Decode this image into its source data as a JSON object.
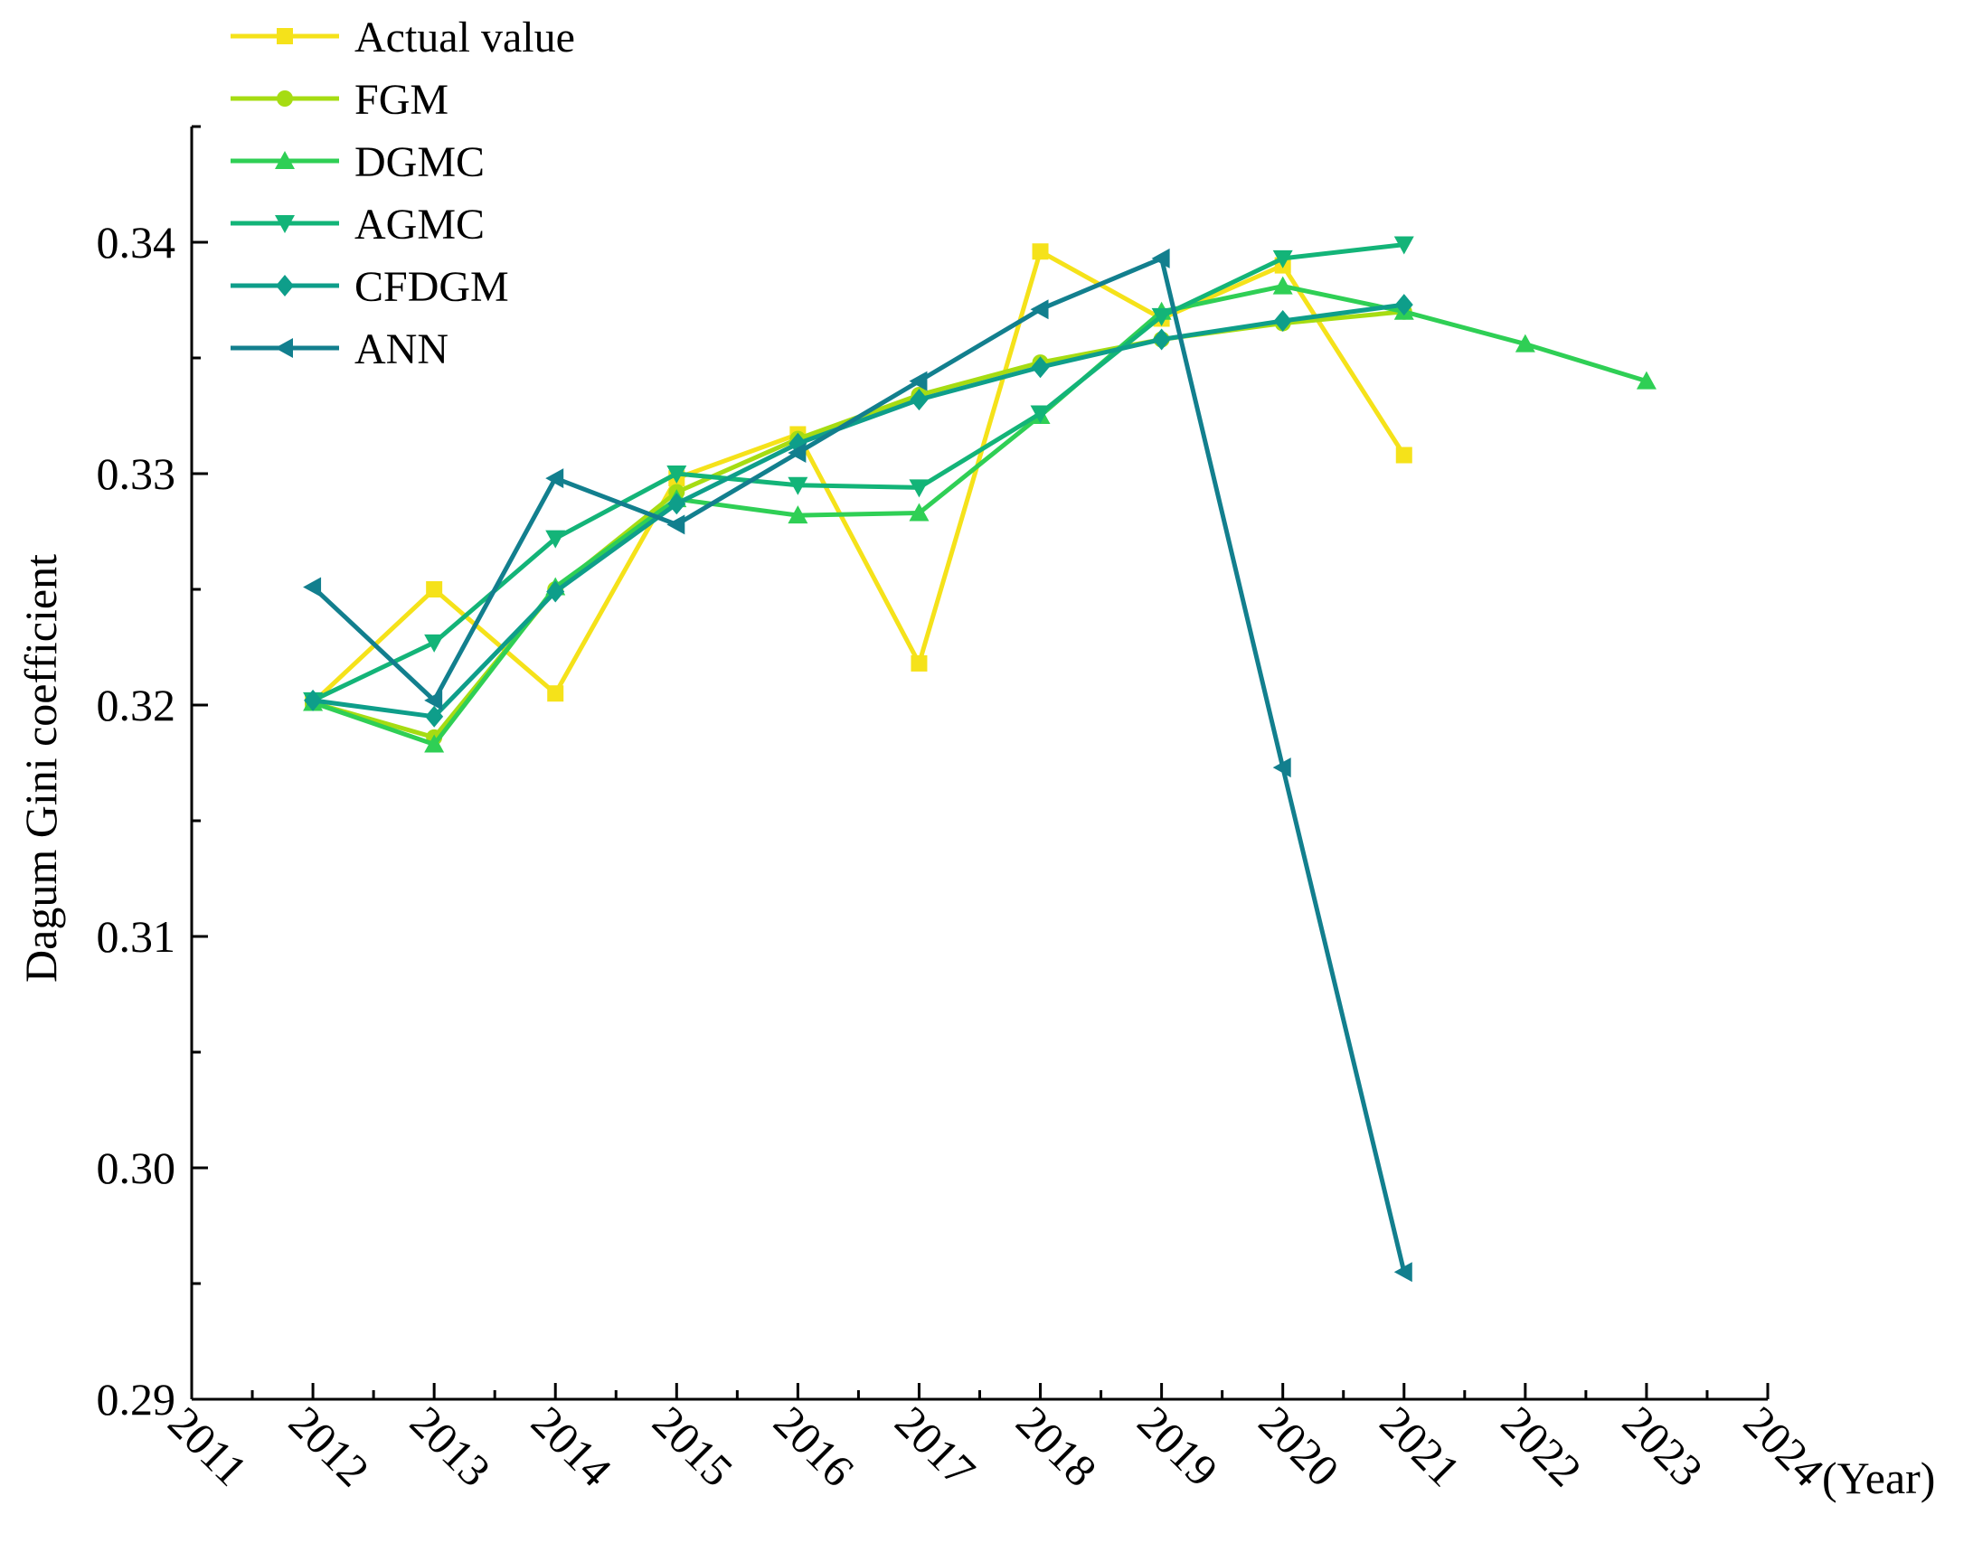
{
  "chart_data": {
    "type": "line",
    "title": "",
    "xlabel": "(Year)",
    "ylabel": "Dagum Gini coefficient",
    "xlim": [
      2011,
      2024
    ],
    "ylim": [
      0.29,
      0.345
    ],
    "x_ticks": [
      "2011",
      "2012",
      "2013",
      "2014",
      "2015",
      "2016",
      "2017",
      "2018",
      "2019",
      "2020",
      "2021",
      "2022",
      "2023",
      "2024"
    ],
    "y_ticks": [
      "0.29",
      "0.30",
      "0.31",
      "0.32",
      "0.33",
      "0.34"
    ],
    "grid": false,
    "legend_position": "top-left",
    "series": [
      {
        "name": "Actual value",
        "color": "#f5e21a",
        "marker": "square",
        "x": [
          2012,
          2013,
          2014,
          2015,
          2016,
          2017,
          2018,
          2019,
          2020,
          2021
        ],
        "values": [
          0.3201,
          0.325,
          0.3205,
          0.3298,
          0.3317,
          0.3218,
          0.3396,
          0.3367,
          0.339,
          0.3308
        ]
      },
      {
        "name": "FGM",
        "color": "#a6dc12",
        "marker": "circle",
        "x": [
          2012,
          2013,
          2014,
          2015,
          2016,
          2017,
          2018,
          2019,
          2020,
          2021
        ],
        "values": [
          0.3201,
          0.3186,
          0.325,
          0.3292,
          0.3315,
          0.3334,
          0.3348,
          0.3358,
          0.3365,
          0.337
        ]
      },
      {
        "name": "DGMC",
        "color": "#2fcf55",
        "marker": "triangle-up",
        "x": [
          2012,
          2013,
          2014,
          2015,
          2016,
          2017,
          2018,
          2019,
          2020,
          2021,
          2022,
          2023
        ],
        "values": [
          0.3201,
          0.3183,
          0.3251,
          0.3289,
          0.3282,
          0.3283,
          0.3325,
          0.337,
          0.3381,
          0.337,
          0.3356,
          0.334
        ]
      },
      {
        "name": "AGMC",
        "color": "#13b478",
        "marker": "triangle-down",
        "x": [
          2012,
          2013,
          2014,
          2015,
          2016,
          2017,
          2018,
          2019,
          2020,
          2021
        ],
        "values": [
          0.3202,
          0.3227,
          0.3272,
          0.33,
          0.3295,
          0.3294,
          0.3326,
          0.3368,
          0.3393,
          0.3399
        ]
      },
      {
        "name": "CFDGM",
        "color": "#0e9e8a",
        "marker": "diamond",
        "x": [
          2012,
          2013,
          2014,
          2015,
          2016,
          2017,
          2018,
          2019,
          2020,
          2021
        ],
        "values": [
          0.3202,
          0.3195,
          0.3249,
          0.3287,
          0.3313,
          0.3332,
          0.3346,
          0.3358,
          0.3366,
          0.3373
        ]
      },
      {
        "name": "ANN",
        "color": "#127f8e",
        "marker": "triangle-left",
        "x": [
          2012,
          2013,
          2014,
          2015,
          2016,
          2017,
          2018,
          2019,
          2020,
          2021
        ],
        "values": [
          0.3251,
          0.3202,
          0.3298,
          0.3278,
          0.3309,
          0.334,
          0.3371,
          0.3393,
          0.3173,
          0.2955
        ]
      }
    ]
  }
}
